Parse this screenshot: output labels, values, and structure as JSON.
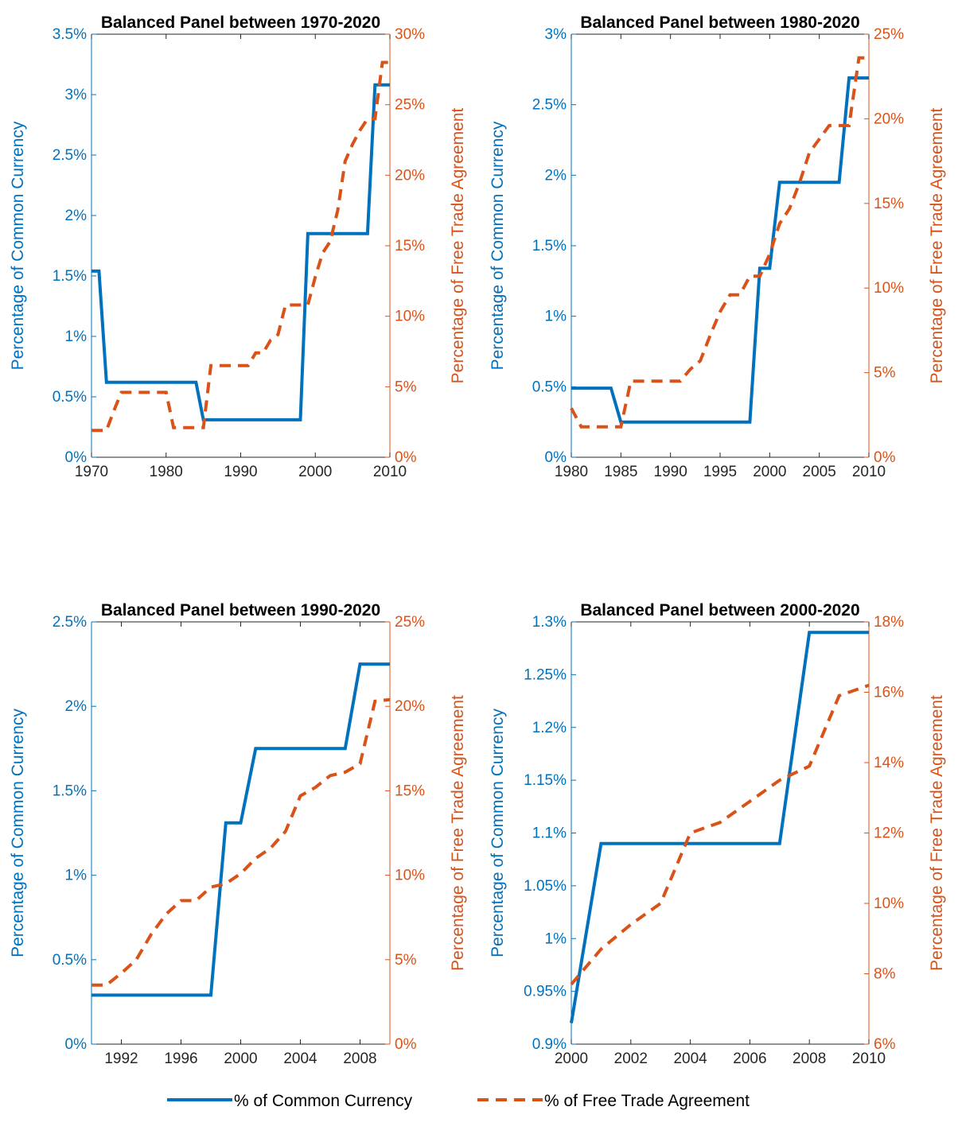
{
  "colors": {
    "left_axis": "#0072BD",
    "right_axis": "#D95319",
    "axes_box": "#262626"
  },
  "legend": {
    "items": [
      {
        "label": "% of Common Currency",
        "style": "solid"
      },
      {
        "label": "% of Free Trade Agreement",
        "style": "dashed"
      }
    ]
  },
  "chart_data": [
    {
      "type": "line",
      "title": "Balanced Panel between 1970-2020",
      "ylabel_left": "Percentage of Common Currency",
      "ylabel_right": "Percentage of Free Trade Agreement",
      "xlim": [
        1970,
        2010
      ],
      "xticks": [
        1970,
        1980,
        1990,
        2000,
        2010
      ],
      "xtick_labels": [
        "1970",
        "1980",
        "1990",
        "2000",
        "2010"
      ],
      "ylim_left": [
        0,
        3.5
      ],
      "yticks_left": [
        0,
        0.5,
        1,
        1.5,
        2,
        2.5,
        3,
        3.5
      ],
      "ytick_labels_left": [
        "0%",
        "0.5%",
        "1%",
        "1.5%",
        "2%",
        "2.5%",
        "3%",
        "3.5%"
      ],
      "ylim_right": [
        0,
        30
      ],
      "yticks_right": [
        0,
        5,
        10,
        15,
        20,
        25,
        30
      ],
      "ytick_labels_right": [
        "0%",
        "5%",
        "10%",
        "15%",
        "20%",
        "25%",
        "30%"
      ],
      "grid": false,
      "series": [
        {
          "name": "% of Common Currency",
          "axis": "left",
          "style": "solid",
          "x": [
            1970,
            1971,
            1972,
            1973,
            1974,
            1975,
            1976,
            1977,
            1978,
            1979,
            1980,
            1981,
            1982,
            1983,
            1984,
            1985,
            1986,
            1987,
            1988,
            1989,
            1990,
            1991,
            1992,
            1993,
            1994,
            1995,
            1996,
            1997,
            1998,
            1999,
            2000,
            2001,
            2002,
            2003,
            2004,
            2005,
            2006,
            2007,
            2008,
            2009,
            2010
          ],
          "values": [
            1.54,
            1.54,
            0.62,
            0.62,
            0.62,
            0.62,
            0.62,
            0.62,
            0.62,
            0.62,
            0.62,
            0.62,
            0.62,
            0.62,
            0.62,
            0.31,
            0.31,
            0.31,
            0.31,
            0.31,
            0.31,
            0.31,
            0.31,
            0.31,
            0.31,
            0.31,
            0.31,
            0.31,
            0.31,
            1.85,
            1.85,
            1.85,
            1.85,
            1.85,
            1.85,
            1.85,
            1.85,
            1.85,
            3.08,
            3.08,
            3.08
          ]
        },
        {
          "name": "% of Free Trade Agreement",
          "axis": "right",
          "style": "dashed",
          "x": [
            1970,
            1971,
            1972,
            1973,
            1974,
            1975,
            1976,
            1977,
            1978,
            1979,
            1980,
            1981,
            1982,
            1983,
            1984,
            1985,
            1986,
            1987,
            1988,
            1989,
            1990,
            1991,
            1992,
            1993,
            1994,
            1995,
            1996,
            1997,
            1998,
            1999,
            2000,
            2001,
            2002,
            2003,
            2004,
            2005,
            2006,
            2007,
            2008,
            2009,
            2010
          ],
          "values": [
            1.9,
            1.9,
            1.9,
            3.3,
            4.6,
            4.6,
            4.6,
            4.6,
            4.6,
            4.6,
            4.6,
            2.1,
            2.1,
            2.1,
            2.1,
            2.1,
            6.5,
            6.5,
            6.5,
            6.5,
            6.5,
            6.5,
            7.4,
            7.4,
            8.3,
            8.7,
            10.8,
            10.8,
            10.8,
            10.8,
            12.8,
            14.5,
            15.3,
            17.5,
            21.0,
            22.2,
            23.2,
            24.0,
            24.0,
            28.0,
            28.0
          ]
        }
      ]
    },
    {
      "type": "line",
      "title": "Balanced Panel between 1980-2020",
      "ylabel_left": "Percentage of Common Currency",
      "ylabel_right": "Percentage of Free Trade Agreement",
      "xlim": [
        1980,
        2010
      ],
      "xticks": [
        1980,
        1985,
        1990,
        1995,
        2000,
        2005,
        2010
      ],
      "xtick_labels": [
        "1980",
        "1985",
        "1990",
        "1995",
        "2000",
        "2005",
        "2010"
      ],
      "ylim_left": [
        0,
        3
      ],
      "yticks_left": [
        0,
        0.5,
        1,
        1.5,
        2,
        2.5,
        3
      ],
      "ytick_labels_left": [
        "0%",
        "0.5%",
        "1%",
        "1.5%",
        "2%",
        "2.5%",
        "3%"
      ],
      "ylim_right": [
        0,
        25
      ],
      "yticks_right": [
        0,
        5,
        10,
        15,
        20,
        25
      ],
      "ytick_labels_right": [
        "0%",
        "5%",
        "10%",
        "15%",
        "20%",
        "25%"
      ],
      "grid": false,
      "series": [
        {
          "name": "% of Common Currency",
          "axis": "left",
          "style": "solid",
          "x": [
            1980,
            1981,
            1982,
            1983,
            1984,
            1985,
            1986,
            1987,
            1988,
            1989,
            1990,
            1991,
            1992,
            1993,
            1994,
            1995,
            1996,
            1997,
            1998,
            1999,
            2000,
            2001,
            2002,
            2003,
            2004,
            2005,
            2006,
            2007,
            2008,
            2009,
            2010
          ],
          "values": [
            0.49,
            0.49,
            0.49,
            0.49,
            0.49,
            0.25,
            0.25,
            0.25,
            0.25,
            0.25,
            0.25,
            0.25,
            0.25,
            0.25,
            0.25,
            0.25,
            0.25,
            0.25,
            0.25,
            1.34,
            1.34,
            1.95,
            1.95,
            1.95,
            1.95,
            1.95,
            1.95,
            1.95,
            2.69,
            2.69,
            2.69
          ]
        },
        {
          "name": "% of Free Trade Agreement",
          "axis": "right",
          "style": "dashed",
          "x": [
            1980,
            1981,
            1982,
            1983,
            1984,
            1985,
            1986,
            1987,
            1988,
            1989,
            1990,
            1991,
            1992,
            1993,
            1994,
            1995,
            1996,
            1997,
            1998,
            1999,
            2000,
            2001,
            2002,
            2003,
            2004,
            2005,
            2006,
            2007,
            2008,
            2009,
            2010
          ],
          "values": [
            2.9,
            1.8,
            1.8,
            1.8,
            1.8,
            1.8,
            4.5,
            4.5,
            4.5,
            4.5,
            4.5,
            4.5,
            5.2,
            5.7,
            7.2,
            8.6,
            9.6,
            9.6,
            10.7,
            10.7,
            12.0,
            13.8,
            14.7,
            16.2,
            18.0,
            18.8,
            19.6,
            19.6,
            19.6,
            23.6,
            23.6
          ]
        }
      ]
    },
    {
      "type": "line",
      "title": "Balanced Panel between 1990-2020",
      "ylabel_left": "Percentage of Common Currency",
      "ylabel_right": "Percentage of Free Trade Agreement",
      "xlim": [
        1990,
        2010
      ],
      "xticks": [
        1992,
        1996,
        2000,
        2004,
        2008
      ],
      "xtick_labels": [
        "1992",
        "1996",
        "2000",
        "2004",
        "2008"
      ],
      "ylim_left": [
        0,
        2.5
      ],
      "yticks_left": [
        0,
        0.5,
        1,
        1.5,
        2,
        2.5
      ],
      "ytick_labels_left": [
        "0%",
        "0.5%",
        "1%",
        "1.5%",
        "2%",
        "2.5%"
      ],
      "ylim_right": [
        0,
        25
      ],
      "yticks_right": [
        0,
        5,
        10,
        15,
        20,
        25
      ],
      "ytick_labels_right": [
        "0%",
        "5%",
        "10%",
        "15%",
        "20%",
        "25%"
      ],
      "grid": false,
      "series": [
        {
          "name": "% of Common Currency",
          "axis": "left",
          "style": "solid",
          "x": [
            1990,
            1991,
            1992,
            1993,
            1994,
            1995,
            1996,
            1997,
            1998,
            1999,
            2000,
            2001,
            2002,
            2003,
            2004,
            2005,
            2006,
            2007,
            2008,
            2009,
            2010
          ],
          "values": [
            0.29,
            0.29,
            0.29,
            0.29,
            0.29,
            0.29,
            0.29,
            0.29,
            0.29,
            1.31,
            1.31,
            1.75,
            1.75,
            1.75,
            1.75,
            1.75,
            1.75,
            1.75,
            2.25,
            2.25,
            2.25
          ]
        },
        {
          "name": "% of Free Trade Agreement",
          "axis": "right",
          "style": "dashed",
          "x": [
            1990,
            1991,
            1992,
            1993,
            1994,
            1995,
            1996,
            1997,
            1998,
            1999,
            2000,
            2001,
            2002,
            2003,
            2004,
            2005,
            2006,
            2007,
            2008,
            2009,
            2010
          ],
          "values": [
            3.5,
            3.5,
            4.2,
            5.0,
            6.5,
            7.7,
            8.5,
            8.5,
            9.3,
            9.5,
            10.1,
            11.0,
            11.6,
            12.6,
            14.7,
            15.2,
            15.9,
            16.1,
            16.6,
            20.3,
            20.4
          ]
        }
      ]
    },
    {
      "type": "line",
      "title": "Balanced Panel between 2000-2020",
      "ylabel_left": "Percentage of Common Currency",
      "ylabel_right": "Percentage of Free Trade Agreement",
      "xlim": [
        2000,
        2010
      ],
      "xticks": [
        2000,
        2002,
        2004,
        2006,
        2008,
        2010
      ],
      "xtick_labels": [
        "2000",
        "2002",
        "2004",
        "2006",
        "2008",
        "2010"
      ],
      "ylim_left": [
        0.9,
        1.3
      ],
      "yticks_left": [
        0.9,
        0.95,
        1,
        1.05,
        1.1,
        1.15,
        1.2,
        1.25,
        1.3
      ],
      "ytick_labels_left": [
        "0.9%",
        "0.95%",
        "1%",
        "1.05%",
        "1.1%",
        "1.15%",
        "1.2%",
        "1.25%",
        "1.3%"
      ],
      "ylim_right": [
        6,
        18
      ],
      "yticks_right": [
        6,
        8,
        10,
        12,
        14,
        16,
        18
      ],
      "ytick_labels_right": [
        "6%",
        "8%",
        "10%",
        "12%",
        "14%",
        "16%",
        "18%"
      ],
      "grid": false,
      "series": [
        {
          "name": "% of Common Currency",
          "axis": "left",
          "style": "solid",
          "x": [
            2000,
            2001,
            2002,
            2003,
            2004,
            2005,
            2006,
            2007,
            2008,
            2009,
            2010
          ],
          "values": [
            0.92,
            1.09,
            1.09,
            1.09,
            1.09,
            1.09,
            1.09,
            1.09,
            1.29,
            1.29,
            1.29
          ]
        },
        {
          "name": "% of Free Trade Agreement",
          "axis": "right",
          "style": "dashed",
          "x": [
            2000,
            2001,
            2002,
            2003,
            2004,
            2005,
            2006,
            2007,
            2008,
            2009,
            2010
          ],
          "values": [
            7.7,
            8.7,
            9.4,
            10.0,
            12.0,
            12.3,
            12.9,
            13.5,
            13.9,
            15.9,
            16.2
          ]
        }
      ]
    }
  ]
}
